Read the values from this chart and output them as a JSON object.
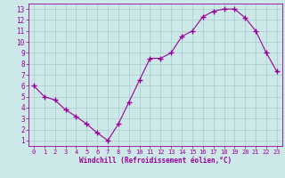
{
  "x": [
    0,
    1,
    2,
    3,
    4,
    5,
    6,
    7,
    8,
    9,
    10,
    11,
    12,
    13,
    14,
    15,
    16,
    17,
    18,
    19,
    20,
    21,
    22,
    23
  ],
  "y": [
    6.0,
    5.0,
    4.7,
    3.8,
    3.2,
    2.5,
    1.7,
    1.0,
    2.5,
    4.5,
    6.5,
    8.5,
    8.5,
    9.0,
    10.5,
    11.0,
    12.3,
    12.8,
    13.0,
    13.0,
    12.2,
    11.0,
    9.0,
    7.3
  ],
  "line_color": "#990099",
  "marker": "+",
  "marker_size": 4,
  "bg_color": "#cce8e8",
  "grid_color": "#aacccc",
  "xlabel": "Windchill (Refroidissement éolien,°C)",
  "xlabel_color": "#990099",
  "tick_color": "#990099",
  "xlim_min": -0.5,
  "xlim_max": 23.5,
  "ylim_min": 0.5,
  "ylim_max": 13.5,
  "xticks": [
    0,
    1,
    2,
    3,
    4,
    5,
    6,
    7,
    8,
    9,
    10,
    11,
    12,
    13,
    14,
    15,
    16,
    17,
    18,
    19,
    20,
    21,
    22,
    23
  ],
  "yticks": [
    1,
    2,
    3,
    4,
    5,
    6,
    7,
    8,
    9,
    10,
    11,
    12,
    13
  ]
}
